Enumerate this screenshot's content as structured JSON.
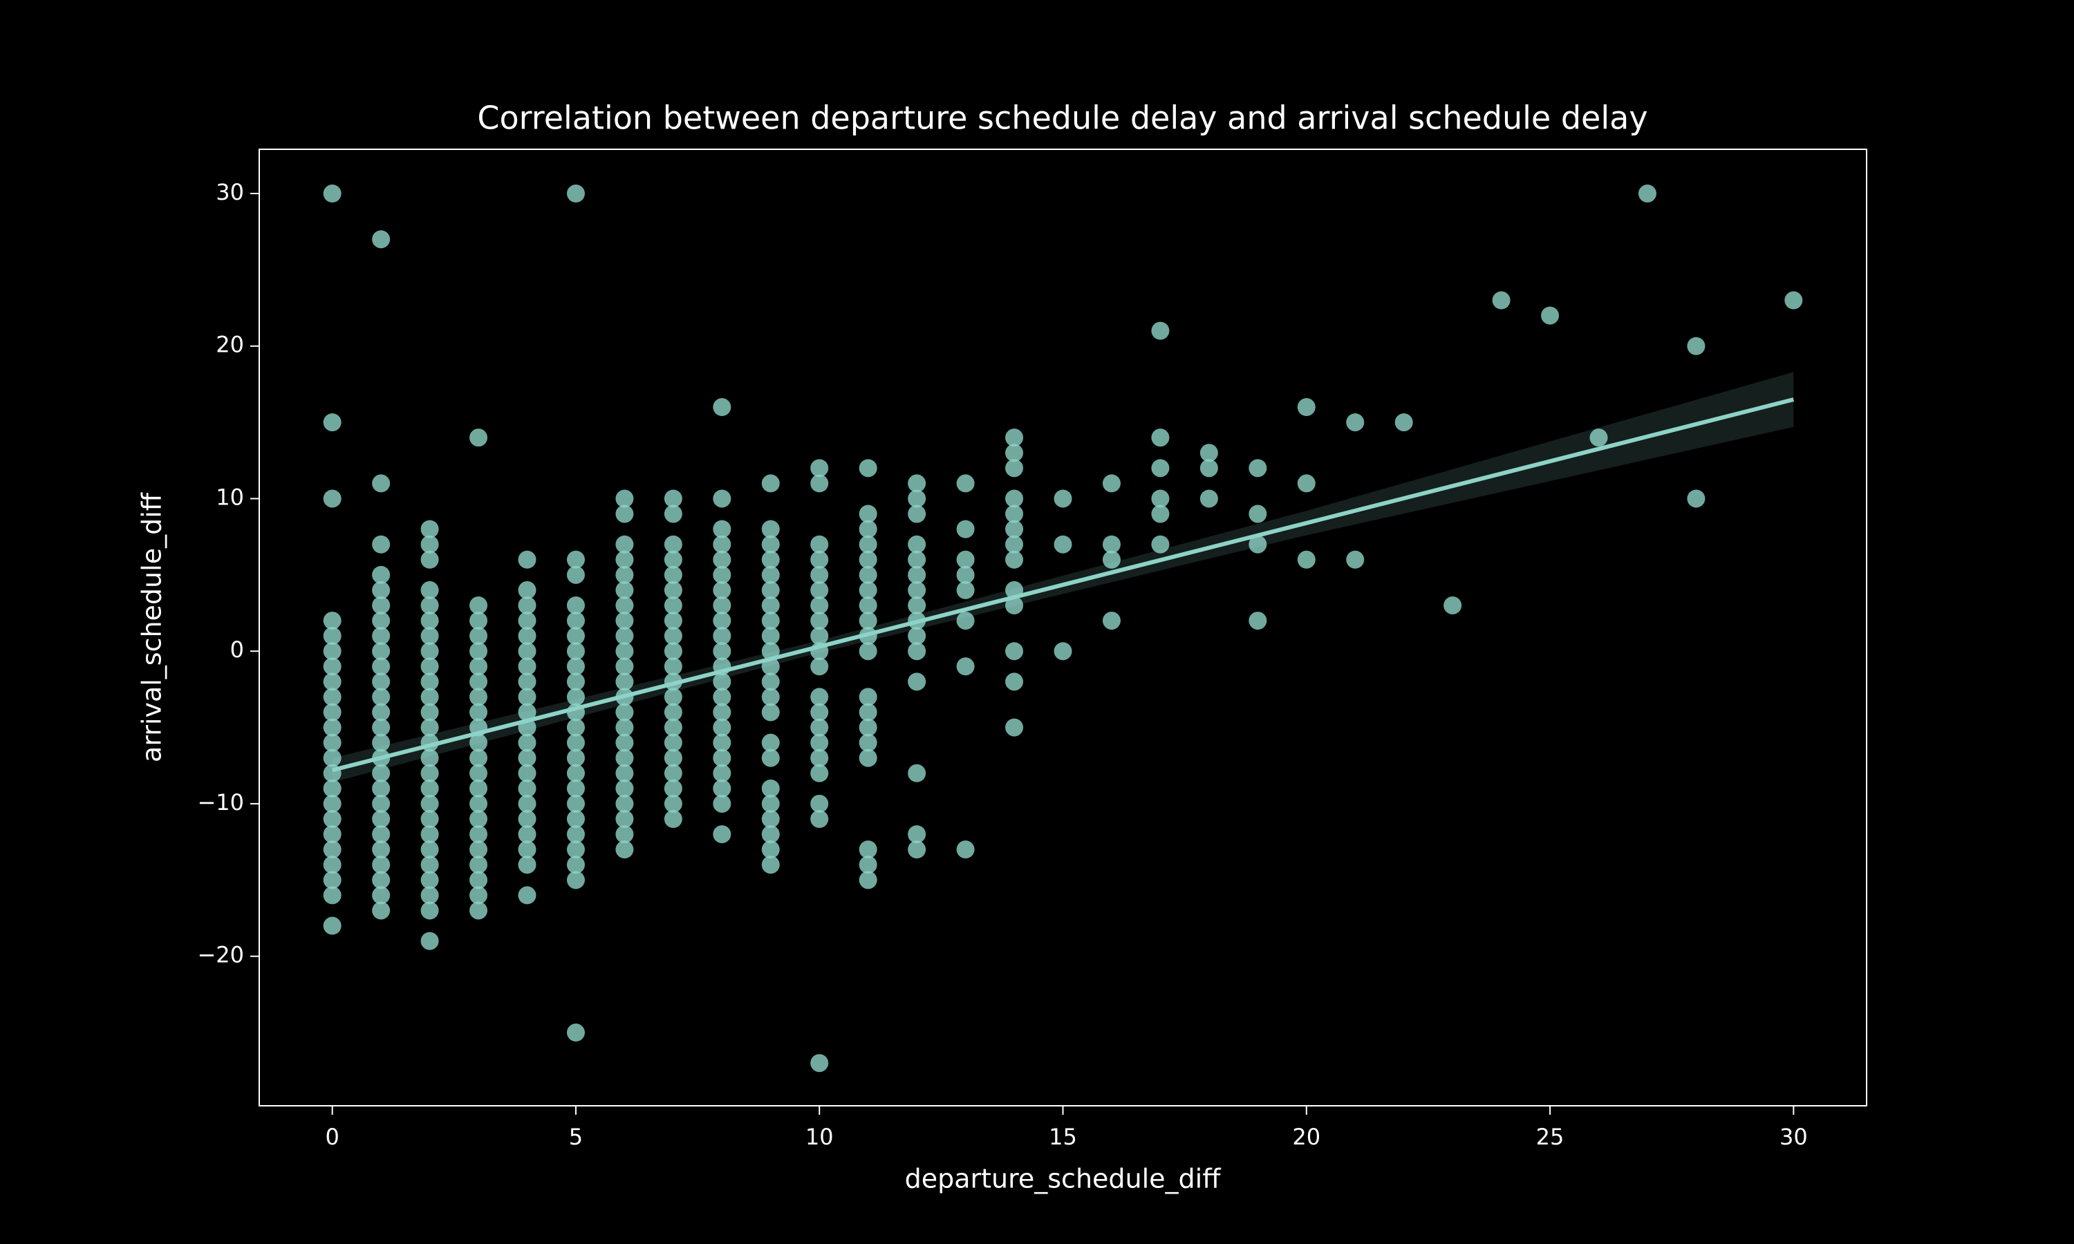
{
  "chart_data": {
    "type": "scatter",
    "title": "Correlation between departure schedule delay and arrival schedule delay",
    "xlabel": "departure_schedule_diff",
    "ylabel": "arrival_schedule_diff",
    "color": "#8dd3c7",
    "xlim": [
      -1.5,
      31.5
    ],
    "ylim": [
      -29.8,
      32.9
    ],
    "xticks": [
      0,
      5,
      10,
      15,
      20,
      25,
      30
    ],
    "yticks": [
      {
        "value": -20,
        "label": "−20"
      },
      {
        "value": -10,
        "label": "−10"
      },
      0,
      10,
      20,
      30
    ],
    "x": [
      0,
      0,
      0,
      0,
      0,
      0,
      0,
      0,
      0,
      0,
      0,
      0,
      0,
      0,
      0,
      0,
      0,
      0,
      0,
      0,
      0,
      0,
      0,
      1,
      1,
      1,
      1,
      1,
      1,
      1,
      1,
      1,
      1,
      1,
      1,
      1,
      1,
      1,
      1,
      1,
      1,
      1,
      1,
      1,
      1,
      1,
      1,
      1,
      1,
      2,
      2,
      2,
      2,
      2,
      2,
      2,
      2,
      2,
      2,
      2,
      2,
      2,
      2,
      2,
      2,
      2,
      2,
      2,
      2,
      2,
      2,
      2,
      2,
      2,
      2,
      3,
      3,
      3,
      3,
      3,
      3,
      3,
      3,
      3,
      3,
      3,
      3,
      3,
      3,
      3,
      3,
      3,
      3,
      3,
      3,
      3,
      3,
      4,
      4,
      4,
      4,
      4,
      4,
      4,
      4,
      4,
      4,
      4,
      4,
      4,
      4,
      4,
      4,
      4,
      4,
      4,
      4,
      4,
      5,
      5,
      5,
      5,
      5,
      5,
      5,
      5,
      5,
      5,
      5,
      5,
      5,
      5,
      5,
      5,
      5,
      5,
      5,
      5,
      5,
      5,
      5,
      6,
      6,
      6,
      6,
      6,
      6,
      6,
      6,
      6,
      6,
      6,
      6,
      6,
      6,
      6,
      6,
      6,
      6,
      6,
      6,
      6,
      6,
      6,
      7,
      7,
      7,
      7,
      7,
      7,
      7,
      7,
      7,
      7,
      7,
      7,
      7,
      7,
      7,
      7,
      7,
      7,
      7,
      7,
      7,
      8,
      8,
      8,
      8,
      8,
      8,
      8,
      8,
      8,
      8,
      8,
      8,
      8,
      8,
      8,
      8,
      8,
      8,
      8,
      8,
      8,
      8,
      9,
      9,
      9,
      9,
      9,
      9,
      9,
      9,
      9,
      9,
      9,
      9,
      9,
      9,
      9,
      9,
      9,
      9,
      9,
      9,
      9,
      9,
      10,
      10,
      10,
      10,
      10,
      10,
      10,
      10,
      10,
      10,
      10,
      10,
      10,
      10,
      10,
      10,
      10,
      10,
      10,
      10,
      11,
      11,
      11,
      11,
      11,
      11,
      11,
      11,
      11,
      11,
      11,
      11,
      11,
      11,
      11,
      11,
      11,
      11,
      11,
      12,
      12,
      12,
      12,
      12,
      12,
      12,
      12,
      12,
      12,
      12,
      12,
      12,
      12,
      12,
      13,
      13,
      13,
      13,
      13,
      13,
      13,
      13,
      14,
      14,
      14,
      14,
      14,
      14,
      14,
      14,
      14,
      14,
      14,
      14,
      14,
      15,
      15,
      15,
      16,
      16,
      16,
      16,
      17,
      17,
      17,
      17,
      17,
      17,
      18,
      18,
      18,
      19,
      19,
      19,
      19,
      20,
      20,
      20,
      21,
      21,
      22,
      23,
      24,
      25,
      26,
      27,
      28,
      28,
      30
    ],
    "y": [
      30,
      15,
      10,
      2,
      1,
      0,
      -1,
      -2,
      -3,
      -4,
      -5,
      -6,
      -7,
      -8,
      -9,
      -10,
      -11,
      -12,
      -13,
      -14,
      -15,
      -16,
      -18,
      27,
      11,
      7,
      5,
      4,
      3,
      2,
      1,
      0,
      -1,
      -2,
      -3,
      -4,
      -5,
      -6,
      -7,
      -8,
      -9,
      -10,
      -11,
      -12,
      -13,
      -14,
      -15,
      -16,
      -17,
      8,
      7,
      6,
      4,
      3,
      2,
      1,
      0,
      -1,
      -2,
      -3,
      -4,
      -5,
      -6,
      -7,
      -8,
      -9,
      -10,
      -11,
      -12,
      -13,
      -14,
      -15,
      -16,
      -17,
      -19,
      14,
      3,
      2,
      1,
      0,
      -1,
      -2,
      -3,
      -4,
      -5,
      -6,
      -7,
      -8,
      -9,
      -10,
      -11,
      -12,
      -13,
      -14,
      -15,
      -16,
      -17,
      6,
      4,
      3,
      2,
      1,
      0,
      -1,
      -2,
      -3,
      -4,
      -5,
      -6,
      -7,
      -8,
      -9,
      -10,
      -11,
      -12,
      -13,
      -14,
      -16,
      30,
      6,
      5,
      3,
      2,
      1,
      0,
      -1,
      -2,
      -3,
      -4,
      -5,
      -6,
      -7,
      -8,
      -9,
      -10,
      -11,
      -12,
      -13,
      -14,
      -15,
      -25,
      10,
      9,
      7,
      6,
      5,
      4,
      3,
      2,
      1,
      0,
      -1,
      -2,
      -3,
      -4,
      -5,
      -6,
      -7,
      -8,
      -9,
      -10,
      -11,
      -12,
      -13,
      10,
      9,
      7,
      6,
      5,
      4,
      3,
      2,
      1,
      0,
      -1,
      -2,
      -3,
      -4,
      -5,
      -6,
      -7,
      -8,
      -9,
      -10,
      -11,
      16,
      10,
      8,
      7,
      6,
      5,
      4,
      3,
      2,
      1,
      0,
      -1,
      -2,
      -3,
      -4,
      -5,
      -6,
      -7,
      -8,
      -9,
      -10,
      -12,
      11,
      8,
      7,
      6,
      5,
      4,
      3,
      2,
      1,
      0,
      -1,
      -2,
      -3,
      -4,
      -6,
      -7,
      -9,
      -10,
      -11,
      -12,
      -13,
      -14,
      12,
      11,
      7,
      6,
      5,
      4,
      3,
      2,
      1,
      0,
      -1,
      -3,
      -4,
      -5,
      -6,
      -7,
      -8,
      -10,
      -11,
      -27,
      12,
      9,
      8,
      7,
      6,
      5,
      4,
      3,
      2,
      1,
      0,
      -3,
      -4,
      -5,
      -6,
      -7,
      -13,
      -14,
      -15,
      11,
      10,
      9,
      7,
      6,
      5,
      4,
      3,
      2,
      1,
      0,
      -2,
      -8,
      -12,
      -13,
      11,
      8,
      6,
      5,
      4,
      2,
      -1,
      -13,
      14,
      13,
      12,
      10,
      9,
      8,
      7,
      6,
      4,
      3,
      0,
      -2,
      -5,
      10,
      7,
      0,
      11,
      7,
      6,
      2,
      21,
      14,
      12,
      10,
      9,
      7,
      13,
      12,
      10,
      12,
      9,
      7,
      2,
      16,
      11,
      6,
      15,
      6,
      15,
      3,
      23,
      22,
      14,
      30,
      20,
      10,
      23
    ],
    "regression": {
      "x": [
        0,
        10,
        20,
        30
      ],
      "y": [
        -7.8,
        0.3,
        8.4,
        16.5
      ],
      "ci_lower": [
        -8.6,
        -0.1,
        7.6,
        14.7
      ],
      "ci_upper": [
        -7.0,
        0.7,
        9.2,
        18.3
      ]
    }
  }
}
